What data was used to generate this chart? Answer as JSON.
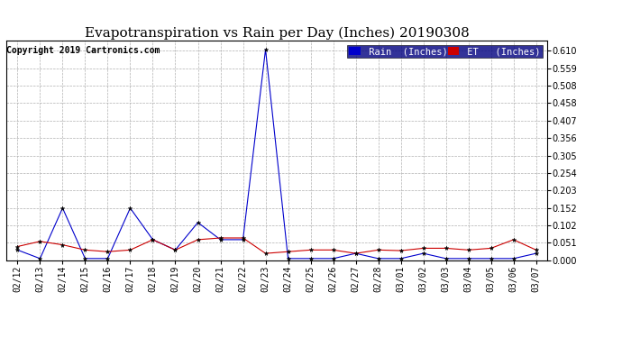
{
  "title": "Evapotranspiration vs Rain per Day (Inches) 20190308",
  "copyright": "Copyright 2019 Cartronics.com",
  "x_labels": [
    "02/12",
    "02/13",
    "02/14",
    "02/15",
    "02/16",
    "02/17",
    "02/18",
    "02/19",
    "02/20",
    "02/21",
    "02/22",
    "02/23",
    "02/24",
    "02/25",
    "02/26",
    "02/27",
    "02/28",
    "03/01",
    "03/02",
    "03/03",
    "03/04",
    "03/05",
    "03/06",
    "03/07"
  ],
  "rain_inches": [
    0.03,
    0.005,
    0.152,
    0.005,
    0.005,
    0.152,
    0.06,
    0.03,
    0.11,
    0.06,
    0.06,
    0.614,
    0.005,
    0.005,
    0.005,
    0.02,
    0.005,
    0.005,
    0.02,
    0.005,
    0.005,
    0.005,
    0.005,
    0.02
  ],
  "et_inches": [
    0.04,
    0.055,
    0.045,
    0.03,
    0.025,
    0.03,
    0.06,
    0.03,
    0.06,
    0.065,
    0.065,
    0.02,
    0.025,
    0.03,
    0.03,
    0.02,
    0.03,
    0.028,
    0.035,
    0.035,
    0.03,
    0.035,
    0.06,
    0.03
  ],
  "rain_color": "#0000cc",
  "et_color": "#cc0000",
  "background_color": "#ffffff",
  "grid_color": "#b0b0b0",
  "ylim": [
    0,
    0.64
  ],
  "yticks": [
    0.0,
    0.051,
    0.102,
    0.152,
    0.203,
    0.254,
    0.305,
    0.356,
    0.407,
    0.458,
    0.508,
    0.559,
    0.61
  ],
  "title_fontsize": 11,
  "copyright_fontsize": 7,
  "tick_fontsize": 7,
  "legend_fontsize": 7.5
}
